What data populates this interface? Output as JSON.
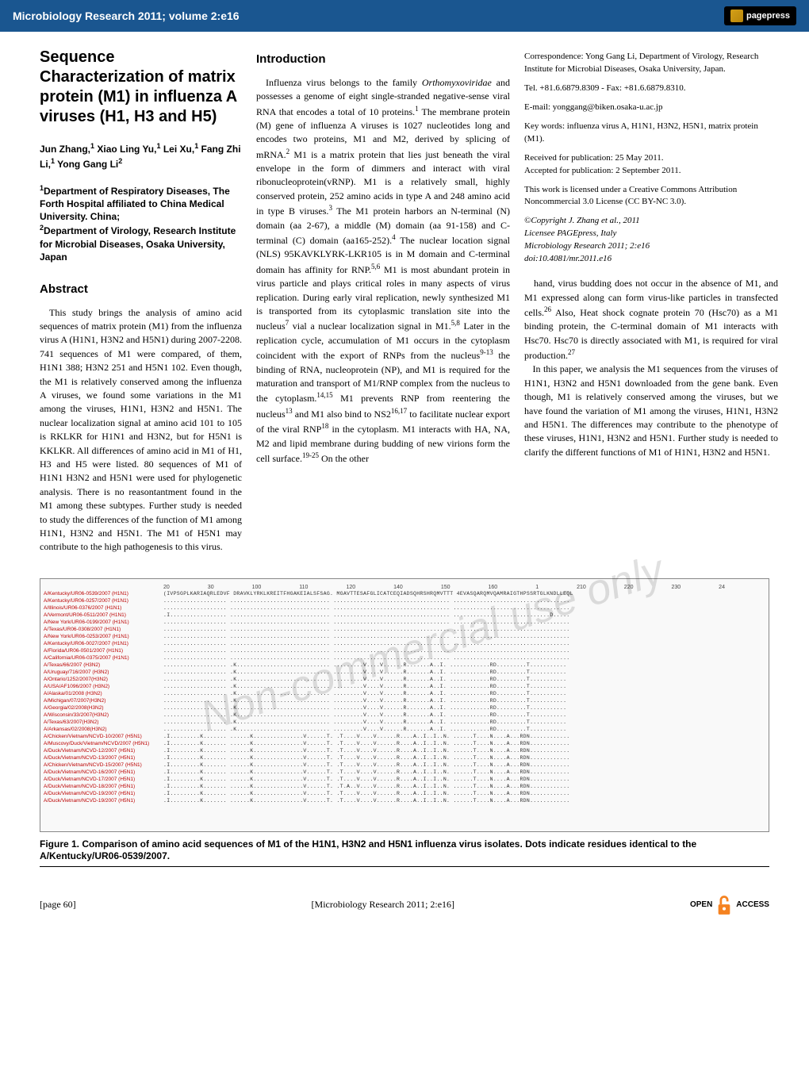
{
  "header": {
    "journal_ref": "Microbiology Research 2011; volume 2:e16",
    "publisher_logo_text": "pagepress"
  },
  "article": {
    "title": "Sequence Characterization of matrix protein (M1) in influenza A viruses (H1, H3 and H5)",
    "authors_html": "Jun Zhang,<sup>1</sup> Xiao Ling Yu,<sup>1</sup> Lei Xu,<sup>1</sup> Fang Zhi Li,<sup>1</sup> Yong Gang Li<sup>2</sup>",
    "affiliations_html": "<sup>1</sup>Department of Respiratory Diseases, The Forth Hospital affiliated to China Medical University. China;<br><sup>2</sup>Department of Virology, Research Institute for Microbial Diseases, Osaka University, Japan",
    "abstract_heading": "Abstract",
    "abstract_text": "This study brings the analysis of amino acid sequences of matrix protein (M1) from the influenza virus A (H1N1, H3N2 and H5N1) during 2007-2208. 741 sequences of M1 were compared, of them, H1N1 388; H3N2 251 and H5N1 102. Even though, the M1 is relatively conserved among the influenza A viruses, we found some variations in the M1 among the viruses, H1N1, H3N2 and H5N1. The nuclear localization signal at amino acid 101 to 105 is RKLKR for H1N1 and H3N2, but for H5N1 is KKLKR. All differences of amino acid in M1 of H1, H3 and H5 were listed. 80 sequences of M1 of H1N1 H3N2 and H5N1 were used for phylogenetic analysis. There is no reasontantment found in the M1 among these subtypes. Further study is needed to study the differences of the function of M1 among H1N1, H3N2 and H5N1. The M1 of H5N1 may contribute to the high pathogenesis to this virus.",
    "intro_heading": "Introduction",
    "intro_html": "Influenza virus belongs to the family <i>Orthomyxoviridae</i> and possesses a genome of eight single-stranded negative-sense viral RNA that encodes a total of 10 proteins.<sup>1</sup> The membrane protein (M) gene of influenza A viruses is 1027 nucleotides long and encodes two proteins, M1 and M2, derived by splicing of mRNA.<sup>2</sup> M1 is a matrix protein that lies just beneath the viral envelope in the form of dimmers and interact with viral ribonucleoprotein(vRNP). M1 is a relatively small, highly conserved protein, 252 amino acids in type A and 248 amino acid in type B viruses.<sup>3</sup> The M1 protein harbors an N-terminal (N) domain (aa 2-67), a middle (M) domain (aa 91-158) and C-terminal (C) domain (aa165-252).<sup>4</sup> The nuclear location signal (NLS) 95KAVKLYRK-LKR105 is in M domain and C-terminal domain has affinity for RNP.<sup>5,6</sup> M1 is most abundant protein in virus particle and plays critical roles in many aspects of virus replication. During early viral replication, newly synthesized M1 is transported from its cytoplasmic translation site into the nucleus<sup>7</sup> vial a nuclear localization signal in M1.<sup>5,8</sup> Later in the replication cycle, accumulation of M1 occurs in the cytoplasm coincident with the export of RNPs from the nucleus<sup>9-13</sup> the binding of RNA, nucleoprotein (NP), and M1 is required for the maturation and transport of M1/RNP complex from the nucleus to the cytoplasm.<sup>14,15</sup> M1 prevents RNP from reentering the nucleus<sup>13</sup> and M1 also bind to NS2<sup>16,17</sup> to facilitate nuclear export of the viral RNP<sup>18</sup> in the cytoplasm. M1 interacts with HA, NA, M2 and lipid membrane during budding of new virions form the cell surface.<sup>19-25</sup> On the other",
    "col3_continuation_html": "hand, virus budding does not occur in the absence of M1, and M1 expressed along can form virus-like particles in transfected cells.<sup>26</sup> Also, Heat shock cognate protein 70 (Hsc70) as a M1 binding protein, the C-terminal domain of M1 interacts with Hsc70. Hsc70 is directly associated with M1, is required for viral production.<sup>27</sup><br>&nbsp;&nbsp;&nbsp;In this paper, we analysis the M1 sequences from the viruses of H1N1, H3N2 and H5N1 downloaded from the gene bank. Even though, M1 is relatively conserved among the viruses, but we have found the variation of M1 among the viruses, H1N1, H3N2 and H5N1. The differences may contribute to the phenotype of these viruses, H1N1, H3N2 and H5N1. Further study is needed to clarify the different functions of M1 of H1N1, H3N2 and H5N1."
  },
  "correspondence": {
    "address": "Correspondence: Yong Gang Li, Department of Virology, Research Institute for Microbial Diseases, Osaka University, Japan.",
    "tel": "Tel. +81.6.6879.8309 - Fax: +81.6.6879.8310.",
    "email": "E-mail: yonggang@biken.osaka-u.ac.jp",
    "keywords": "Key words: influenza virus A, H1N1, H3N2, H5N1, matrix protein (M1).",
    "received": "Received for publication: 25 May 2011.",
    "accepted": "Accepted for publication: 2 September 2011.",
    "license": "This work is licensed under a Creative Commons Attribution Noncommercial 3.0 License (CC BY-NC 3.0).",
    "copyright_html": "<i>©Copyright J. Zhang et al., 2011<br>Licensee PAGEpress, Italy<br>Microbiology Research 2011; 2:e16<br>doi:10.4081/mr.2011.e16</i>"
  },
  "figure": {
    "ruler_ticks": [
      "20",
      "30",
      "100",
      "110",
      "120",
      "140",
      "150",
      "160",
      "1",
      "210",
      "220",
      "230",
      "24"
    ],
    "rows": [
      {
        "label": "A/Kentucky/UR06-0539/2007 (H1N1)",
        "seq_a": "(IVPSGPLKARIAQRLEDVF",
        "seq_b": "DRAVKLYRKLKREITFHGAKEIALSFSAG.",
        "seq_c": "MGAVTTESAFGLICATCEQIADSQHRSHRQMVTTT",
        "seq_d": "4EVASQARQMVQAMRAIGTHPSSRTGLKNDLLEQL"
      },
      {
        "label": "A/Kentucky/UR06-0257/2007 (H1N1)",
        "seq_a": "...................",
        "seq_b": "..............................",
        "seq_c": "...................................",
        "seq_d": "..................................."
      },
      {
        "label": "A/Illinois/UR06-0376/2007 (H1N1)",
        "seq_a": "...................",
        "seq_b": "..............................",
        "seq_c": "...................................",
        "seq_d": "..................................."
      },
      {
        "label": "A/Vermont/UR06-0511/2007 (H1N1)",
        "seq_a": ".I.................",
        "seq_b": "..............................",
        "seq_c": "...................................",
        "seq_d": ".............................D....."
      },
      {
        "label": "A/New York/UR06-0199/2007 (H1N1)",
        "seq_a": "...................",
        "seq_b": "..............................",
        "seq_c": "...................................",
        "seq_d": "..................................."
      },
      {
        "label": "A/Texas/UR06-0308/2007 (H1N1)",
        "seq_a": "...................",
        "seq_b": "..............................",
        "seq_c": "...................................",
        "seq_d": "..................................."
      },
      {
        "label": "A/New York/UR06-0253/2007 (H1N1)",
        "seq_a": "...................",
        "seq_b": "..............................",
        "seq_c": "...................................",
        "seq_d": "..................................."
      },
      {
        "label": "A/Kentucky/UR06-0027/2007 (H1N1)",
        "seq_a": "...................",
        "seq_b": "..............................",
        "seq_c": "...................................",
        "seq_d": "..................................."
      },
      {
        "label": "A/Florida/UR06-0501/2007 (H1N1)",
        "seq_a": "...................",
        "seq_b": "..............................",
        "seq_c": "...................................",
        "seq_d": "..................................."
      },
      {
        "label": "A/California/UR06-0375/2007 (H1N1)",
        "seq_a": "...................",
        "seq_b": "..............................",
        "seq_c": "...................................",
        "seq_d": "..................................."
      },
      {
        "label": "A/Texas/66/2007 (H3N2)",
        "seq_a": "...................",
        "seq_b": ".K............................",
        "seq_c": ".........V....V......R.......A..I.",
        "seq_d": "............RD.........T..........."
      },
      {
        "label": "A/Uruguay/716/2007 (H3N2)",
        "seq_a": "...................",
        "seq_b": ".K............................",
        "seq_c": ".........V....V......R.......A..I.",
        "seq_d": "............RD.........T..........."
      },
      {
        "label": "A/Ontario/1252/2007(H3N2)",
        "seq_a": "...................",
        "seq_b": ".K............................",
        "seq_c": ".........V....V......R.......A..I.",
        "seq_d": "............RD.........T..........."
      },
      {
        "label": "A/USA/AF1096/2007 (H3N2)",
        "seq_a": "...................",
        "seq_b": ".K............................",
        "seq_c": ".........V....V......R.......A..I.",
        "seq_d": "............RD.........T..........."
      },
      {
        "label": "A/Alaska/01/2008 (H3N2)",
        "seq_a": "...................",
        "seq_b": ".K............................",
        "seq_c": ".........V....V......R.......A..I.",
        "seq_d": "............RD.........T..........."
      },
      {
        "label": "A/Michigan/07/2007(H3N2)",
        "seq_a": "...................",
        "seq_b": ".K............................",
        "seq_c": ".........V....V......R.......A..I.",
        "seq_d": "............RD.........T..........."
      },
      {
        "label": "A/Georgia/02/2008(H3N2)",
        "seq_a": "...................",
        "seq_b": ".K............................",
        "seq_c": ".........V....V......R.......A..I.",
        "seq_d": "............RD.........T..........."
      },
      {
        "label": "A/Wisconsin/33/2007(H3N2)",
        "seq_a": "...................",
        "seq_b": ".K............................",
        "seq_c": ".........V....V......R.......A..I.",
        "seq_d": "............RD.........T..........."
      },
      {
        "label": "A/Texas/63/2007(H3N2)",
        "seq_a": "...................",
        "seq_b": ".K............................",
        "seq_c": ".........V....V......R.......A..I.",
        "seq_d": "............RD.........T..........."
      },
      {
        "label": "A/Arkansas/02/2008(H3N2)",
        "seq_a": "...................",
        "seq_b": ".K............................",
        "seq_c": ".........V....V......R.......A..I.",
        "seq_d": "............RD.........T..........."
      },
      {
        "label": "A/Chicken/Vietnam/NCVD-10/2007 (H5N1)",
        "seq_a": ".I.........K.......",
        "seq_b": "......K...............V......T.",
        "seq_c": ".T....V....V......R....A..I..I..N.",
        "seq_d": "......T....N....A...RDN............"
      },
      {
        "label": "A/Muscovy/Duck/Vietnam/NCVD/2007 (H5N1)",
        "seq_a": ".I.........K.......",
        "seq_b": "......K...............V......T.",
        "seq_c": ".T....V....V......R....A..I..I..N.",
        "seq_d": "......T....N....A...RDN............"
      },
      {
        "label": "A/Duck/Vietnam/NCVD-12/2007 (H5N1)",
        "seq_a": ".I.........K.......",
        "seq_b": "......K...............V......T.",
        "seq_c": ".T....V....V......R....A..I..I..N.",
        "seq_d": "......T....N....A...RDN............"
      },
      {
        "label": "A/Duck/Vietnam/NCVD-13/2007 (H5N1)",
        "seq_a": ".I.........K.......",
        "seq_b": "......K...............V......T.",
        "seq_c": ".T....V....V......R....A..I..I..N.",
        "seq_d": "......T....N....A...RDN............"
      },
      {
        "label": "A/Chicken/Vietnam/NCVD-15/2007 (H5N1)",
        "seq_a": ".I.........K.......",
        "seq_b": "......K...............V......T.",
        "seq_c": ".T....V....V......R....A..I..I..N.",
        "seq_d": "......T....N....A...RDN............"
      },
      {
        "label": "A/Duck/Vietnam/NCVD-16/2007 (H5N1)",
        "seq_a": ".I.........K.......",
        "seq_b": "......K...............V......T.",
        "seq_c": ".T....V....V......R....A..I..I..N.",
        "seq_d": "......T....N....A...RDN............"
      },
      {
        "label": "A/Duck/Vietnam/NCVD-17/2007 (H5N1)",
        "seq_a": ".I.........K.......",
        "seq_b": "......K...............V......T.",
        "seq_c": ".T....V....V......R....A..I..I..N.",
        "seq_d": "......T....N....A...RDN............"
      },
      {
        "label": "A/Duck/Vietnam/NCVD-18/2007 (H5N1)",
        "seq_a": ".I.........K.......",
        "seq_b": "......K...............V......T.",
        "seq_c": ".T.A..V....V......R....A..I..I..N.",
        "seq_d": "......T....N....A...RDN............"
      },
      {
        "label": "A/Duck/Vietnam/NCVD-19/2007 (H5N1)",
        "seq_a": ".I.........K.......",
        "seq_b": "......K...............V......T.",
        "seq_c": ".T....V....V......R....A..I..I..N.",
        "seq_d": "......T....N....A...RDN............"
      },
      {
        "label": "A/Duck/Vietnam/NCVD-19/2007 (H5N1)",
        "seq_a": ".I.........K.......",
        "seq_b": "......K...............V......T.",
        "seq_c": ".T....V....V......R....A..I..I..N.",
        "seq_d": "......T....N....A...RDN............"
      }
    ],
    "caption": "Figure 1. Comparison of amino acid sequences of M1 of the H1N1, H3N2 and H5N1 influenza virus isolates. Dots indicate residues identical to the A/Kentucky/UR06-0539/2007."
  },
  "footer": {
    "page_number": "[page 60]",
    "citation": "[Microbiology Research 2011; 2:e16]",
    "open_text": "OPEN",
    "access_text": "ACCESS"
  },
  "watermark": "Non-commercial use only",
  "colors": {
    "header_bg": "#1a5690",
    "label_red": "#b00000",
    "oa_orange": "#f58220"
  }
}
